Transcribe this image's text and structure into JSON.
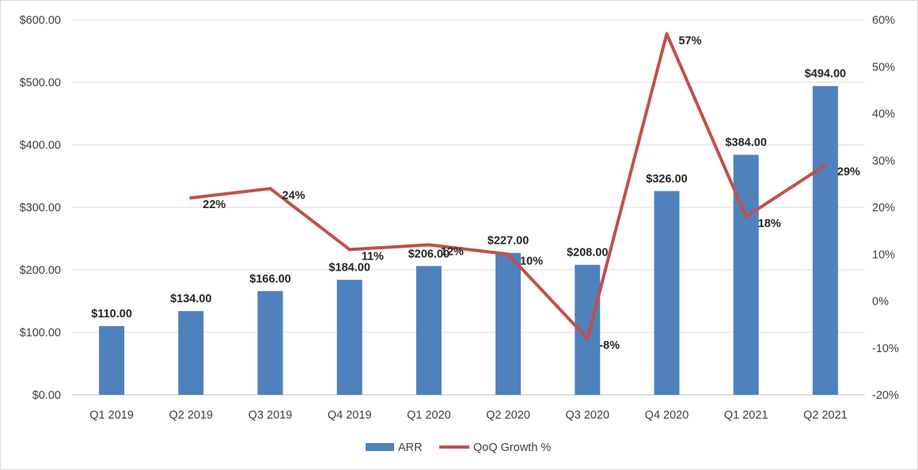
{
  "chart_data": {
    "type": "bar",
    "categories": [
      "Q1 2019",
      "Q2 2019",
      "Q3 2019",
      "Q4 2019",
      "Q1 2020",
      "Q2 2020",
      "Q3 2020",
      "Q4 2020",
      "Q1 2021",
      "Q2 2021"
    ],
    "series": [
      {
        "name": "ARR",
        "type": "bar",
        "axis": "left",
        "color": "#4f81bd",
        "values": [
          110,
          134,
          166,
          184,
          206,
          227,
          208,
          326,
          384,
          494
        ],
        "labels": [
          "$110.00",
          "$134.00",
          "$166.00",
          "$184.00",
          "$206.00",
          "$227.00",
          "$208.00",
          "$326.00",
          "$384.00",
          "$494.00"
        ]
      },
      {
        "name": "QoQ Growth %",
        "type": "line",
        "axis": "right",
        "color": "#c0504d",
        "values": [
          null,
          22,
          24,
          11,
          12,
          10,
          -8,
          57,
          18,
          29
        ],
        "labels": [
          null,
          "22%",
          "24%",
          "11%",
          "12%",
          "10%",
          "-8%",
          "57%",
          "18%",
          "29%"
        ]
      }
    ],
    "y_left": {
      "ylim": [
        0,
        600
      ],
      "ticks": [
        0,
        100,
        200,
        300,
        400,
        500,
        600
      ],
      "tick_labels": [
        "$0.00",
        "$100.00",
        "$200.00",
        "$300.00",
        "$400.00",
        "$500.00",
        "$600.00"
      ]
    },
    "y_right": {
      "ylim": [
        -20,
        60
      ],
      "ticks": [
        -20,
        -10,
        0,
        10,
        20,
        30,
        40,
        50,
        60
      ],
      "tick_labels": [
        "-20%",
        "-10%",
        "0%",
        "10%",
        "20%",
        "30%",
        "40%",
        "50%",
        "60%"
      ]
    },
    "title": "",
    "xlabel": "",
    "ylabel": "",
    "grid": true,
    "legend": "bottom-center"
  }
}
